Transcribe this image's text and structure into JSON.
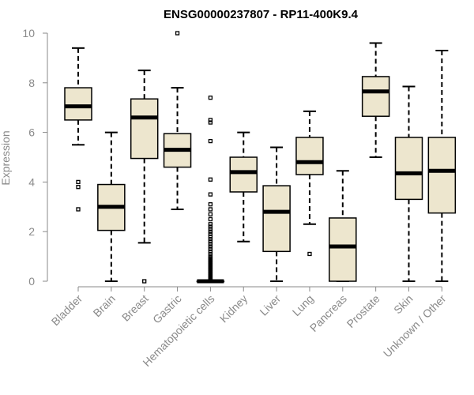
{
  "chart_data": {
    "type": "boxplot",
    "title": "ENSG00000237807 - RP11-400K9.4",
    "xlabel": "",
    "ylabel": "Expression",
    "ylim": [
      0,
      10
    ],
    "yticks": [
      0,
      2,
      4,
      6,
      8,
      10
    ],
    "box_color": "#EDE6CE",
    "categories": [
      "Bladder",
      "Brain",
      "Breast",
      "Gastric",
      "Hematopoietic cells",
      "Kidney",
      "Liver",
      "Lung",
      "Pancreas",
      "Prostate",
      "Skin",
      "Unknown / Other"
    ],
    "boxes": [
      {
        "min": 5.5,
        "q1": 6.5,
        "median": 7.05,
        "q3": 7.8,
        "max": 9.4,
        "outliers": [
          2.9,
          3.8,
          4.0
        ]
      },
      {
        "min": 0.0,
        "q1": 2.05,
        "median": 3.0,
        "q3": 3.9,
        "max": 6.0,
        "outliers": []
      },
      {
        "min": 1.55,
        "q1": 4.95,
        "median": 6.6,
        "q3": 7.35,
        "max": 8.5,
        "outliers": [
          0.0
        ]
      },
      {
        "min": 2.9,
        "q1": 4.6,
        "median": 5.3,
        "q3": 5.95,
        "max": 7.8,
        "outliers": [
          10.0
        ]
      },
      {
        "min": 0.0,
        "q1": 0.0,
        "median": 0.0,
        "q3": 0.0,
        "max": 0.0,
        "outliers": [
          0.05,
          0.1,
          0.15,
          0.2,
          0.25,
          0.3,
          0.35,
          0.4,
          0.45,
          0.5,
          0.55,
          0.6,
          0.65,
          0.7,
          0.75,
          0.8,
          0.85,
          0.9,
          0.95,
          1.0,
          1.1,
          1.2,
          1.3,
          1.4,
          1.5,
          1.6,
          1.7,
          1.8,
          1.9,
          2.0,
          2.1,
          2.2,
          2.3,
          2.5,
          2.7,
          2.9,
          3.1,
          3.5,
          4.1,
          5.65,
          6.4,
          6.5,
          7.4
        ]
      },
      {
        "min": 1.6,
        "q1": 3.6,
        "median": 4.4,
        "q3": 5.0,
        "max": 6.0,
        "outliers": []
      },
      {
        "min": 0.0,
        "q1": 1.2,
        "median": 2.8,
        "q3": 3.85,
        "max": 5.4,
        "outliers": []
      },
      {
        "min": 2.3,
        "q1": 4.3,
        "median": 4.8,
        "q3": 5.8,
        "max": 6.85,
        "outliers": [
          1.1
        ]
      },
      {
        "min": 0.0,
        "q1": 0.0,
        "median": 1.4,
        "q3": 2.55,
        "max": 4.45,
        "outliers": []
      },
      {
        "min": 5.0,
        "q1": 6.65,
        "median": 7.65,
        "q3": 8.25,
        "max": 9.6,
        "outliers": []
      },
      {
        "min": 0.0,
        "q1": 3.3,
        "median": 4.35,
        "q3": 5.8,
        "max": 7.85,
        "outliers": []
      },
      {
        "min": 0.0,
        "q1": 2.75,
        "median": 4.45,
        "q3": 5.8,
        "max": 9.3,
        "outliers": []
      }
    ]
  }
}
